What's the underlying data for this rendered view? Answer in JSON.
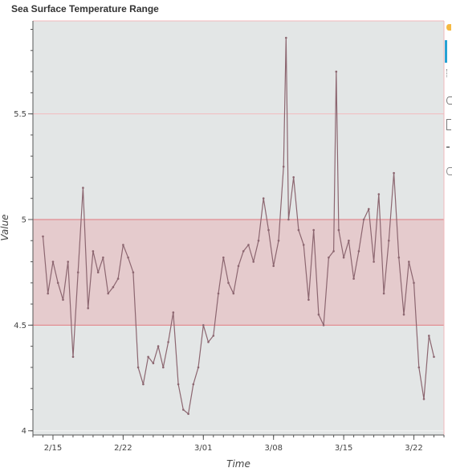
{
  "chart_data": {
    "type": "line",
    "title": "Sea Surface Temperature Range",
    "xlabel": "Time",
    "ylabel": "Value",
    "x_ticks": [
      "2/15",
      "2/22",
      "3/01",
      "3/08",
      "3/15",
      "3/22"
    ],
    "y_ticks": [
      "4",
      "4.5",
      "5",
      "5.5"
    ],
    "xlim": [
      "2024-02-13",
      "2024-03-25"
    ],
    "ylim": [
      3.98,
      5.94
    ],
    "grid": true,
    "band": {
      "y_min": 4.5,
      "y_max": 5.0
    },
    "reference_line": 5.5,
    "colors": {
      "line": "#8c6670",
      "band_fill": "#e8b4b8",
      "band_edge": "#e07a80",
      "background": "#e3e6e6",
      "grid": "#ffffff",
      "ref_line": "#f0b8bc"
    },
    "series": [
      {
        "x": [
          "2024-02-14",
          "2024-02-14T12:00",
          "2024-02-15",
          "2024-02-15T12:00",
          "2024-02-16",
          "2024-02-16T12:00",
          "2024-02-17",
          "2024-02-17T12:00",
          "2024-02-18",
          "2024-02-18T12:00",
          "2024-02-19",
          "2024-02-19T12:00",
          "2024-02-20",
          "2024-02-20T12:00",
          "2024-02-21",
          "2024-02-21T12:00",
          "2024-02-22",
          "2024-02-22T12:00",
          "2024-02-23",
          "2024-02-23T12:00",
          "2024-02-24",
          "2024-02-24T12:00",
          "2024-02-25",
          "2024-02-25T12:00",
          "2024-02-26",
          "2024-02-26T12:00",
          "2024-02-27",
          "2024-02-27T12:00",
          "2024-02-28",
          "2024-02-28T12:00",
          "2024-02-29",
          "2024-02-29T12:00",
          "2024-03-01",
          "2024-03-01T12:00",
          "2024-03-02",
          "2024-03-02T12:00",
          "2024-03-03",
          "2024-03-03T12:00",
          "2024-03-04",
          "2024-03-04T12:00",
          "2024-03-05",
          "2024-03-05T12:00",
          "2024-03-06",
          "2024-03-06T12:00",
          "2024-03-07",
          "2024-03-07T12:00",
          "2024-03-08",
          "2024-03-08T12:00",
          "2024-03-09",
          "2024-03-09T06:00",
          "2024-03-09T12:00",
          "2024-03-10",
          "2024-03-10T12:00",
          "2024-03-11",
          "2024-03-11T12:00",
          "2024-03-12",
          "2024-03-12T12:00",
          "2024-03-13",
          "2024-03-13T12:00",
          "2024-03-14",
          "2024-03-14T06:00",
          "2024-03-14T12:00",
          "2024-03-15",
          "2024-03-15T12:00",
          "2024-03-16",
          "2024-03-16T12:00",
          "2024-03-17",
          "2024-03-17T12:00",
          "2024-03-18",
          "2024-03-18T12:00",
          "2024-03-19",
          "2024-03-19T12:00",
          "2024-03-20",
          "2024-03-20T12:00",
          "2024-03-21",
          "2024-03-21T12:00",
          "2024-03-22",
          "2024-03-22T12:00",
          "2024-03-23",
          "2024-03-23T12:00",
          "2024-03-24"
        ],
        "y": [
          4.92,
          4.65,
          4.8,
          4.7,
          4.62,
          4.8,
          4.35,
          4.75,
          5.15,
          4.58,
          4.85,
          4.75,
          4.82,
          4.65,
          4.68,
          4.72,
          4.88,
          4.82,
          4.75,
          4.3,
          4.22,
          4.35,
          4.32,
          4.4,
          4.3,
          4.42,
          4.56,
          4.22,
          4.1,
          4.08,
          4.22,
          4.3,
          4.5,
          4.42,
          4.45,
          4.65,
          4.82,
          4.7,
          4.65,
          4.78,
          4.85,
          4.88,
          4.8,
          4.9,
          5.1,
          4.95,
          4.78,
          4.9,
          5.25,
          5.86,
          5.0,
          5.2,
          4.95,
          4.88,
          4.62,
          4.95,
          4.55,
          4.5,
          4.82,
          4.85,
          5.7,
          4.95,
          4.82,
          4.9,
          4.72,
          4.85,
          5.0,
          5.05,
          4.8,
          5.12,
          4.65,
          4.9,
          5.22,
          4.82,
          4.55,
          4.8,
          4.7,
          4.3,
          4.15,
          4.45,
          4.35
        ]
      }
    ]
  }
}
